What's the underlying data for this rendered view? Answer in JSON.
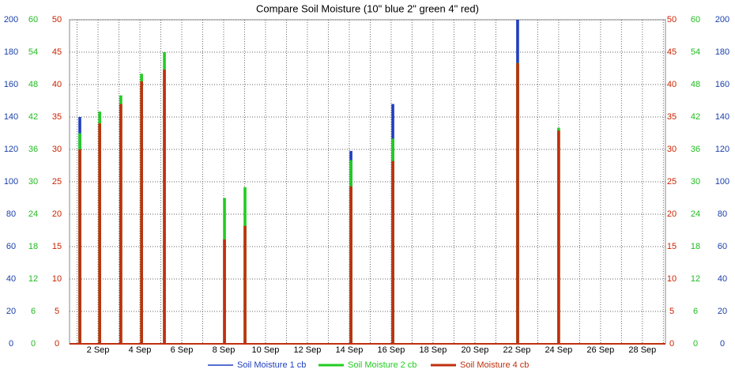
{
  "chart_data": {
    "type": "bar",
    "title": "Compare Soil Moisture (10\" blue 2\" green 4\" red)",
    "xlim": [
      0.64,
      29.1
    ],
    "xticks": [
      {
        "value": 2,
        "label": "2 Sep"
      },
      {
        "value": 4,
        "label": "4 Sep"
      },
      {
        "value": 6,
        "label": "6 Sep"
      },
      {
        "value": 8,
        "label": "8 Sep"
      },
      {
        "value": 10,
        "label": "10 Sep"
      },
      {
        "value": 12,
        "label": "12 Sep"
      },
      {
        "value": 14,
        "label": "14 Sep"
      },
      {
        "value": 16,
        "label": "16 Sep"
      },
      {
        "value": 18,
        "label": "18 Sep"
      },
      {
        "value": 20,
        "label": "20 Sep"
      },
      {
        "value": 22,
        "label": "22 Sep"
      },
      {
        "value": 24,
        "label": "24 Sep"
      },
      {
        "value": 26,
        "label": "26 Sep"
      },
      {
        "value": 28,
        "label": "28 Sep"
      }
    ],
    "xminorticks": [
      1,
      3,
      5,
      7,
      9,
      11,
      13,
      15,
      17,
      19,
      21,
      23,
      25,
      27,
      29
    ],
    "ylim": [
      0,
      200
    ],
    "yticks": [
      0,
      20,
      40,
      60,
      80,
      100,
      120,
      140,
      160,
      180,
      200
    ],
    "ycolor": "#1a3faa",
    "y2lim": [
      0,
      60
    ],
    "y2ticks": [
      0,
      6,
      12,
      18,
      24,
      30,
      36,
      42,
      48,
      54,
      60
    ],
    "y2color": "#22bb22",
    "y3lim": [
      0,
      50
    ],
    "y3ticks": [
      0,
      5,
      10,
      15,
      20,
      25,
      30,
      35,
      40,
      45,
      50
    ],
    "y3color": "#cc2200",
    "grid": true,
    "series": [
      {
        "name": "Soil Moisture 1 cb",
        "color": "#1f3fbf",
        "axis": "y",
        "x": [
          1.13,
          14.08,
          16.08,
          22.04
        ],
        "values": [
          140,
          119,
          148,
          200
        ]
      },
      {
        "name": "Soil Moisture 2 cb",
        "color": "#22cc22",
        "axis": "y2",
        "x": [
          1.13,
          2.08,
          3.09,
          4.08,
          5.17,
          8.04,
          9.02,
          14.08,
          16.08,
          22.04,
          24.0
        ],
        "values": [
          39,
          43,
          46,
          50,
          54,
          27,
          29,
          34,
          38,
          52,
          40
        ]
      },
      {
        "name": "Soil Moisture 4 cb",
        "color": "#c0300f",
        "axis": "y3",
        "x": [
          1.13,
          2.08,
          3.09,
          4.08,
          5.17,
          8.04,
          9.02,
          14.08,
          16.08,
          22.04,
          24.0
        ],
        "values": [
          30,
          34,
          37,
          40.5,
          42.3,
          16.1,
          18.2,
          24.3,
          28.2,
          43.3,
          32.9
        ]
      }
    ]
  }
}
